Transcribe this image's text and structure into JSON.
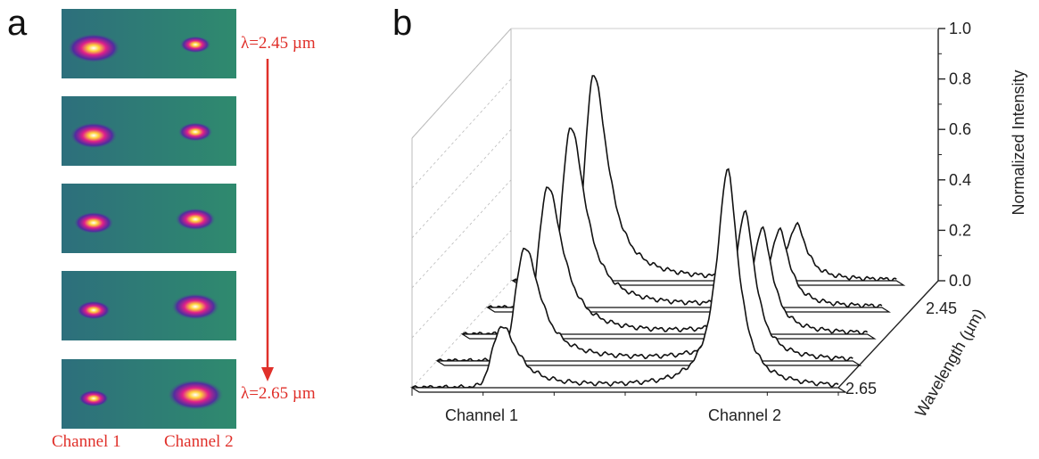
{
  "panel_a": {
    "label": "a",
    "top_wavelength": "λ=2.45 µm",
    "bottom_wavelength": "λ=2.65 µm",
    "channel1_caption": "Channel 1",
    "channel2_caption": "Channel 2",
    "images": [
      {
        "ch1": 0.95,
        "ch2": 0.35
      },
      {
        "ch1": 0.8,
        "ch2": 0.45
      },
      {
        "ch1": 0.6,
        "ch2": 0.6
      },
      {
        "ch1": 0.45,
        "ch2": 0.8
      },
      {
        "ch1": 0.35,
        "ch2": 1.0
      }
    ],
    "colors": {
      "background": "#2f8a6e",
      "accent": "#e0302a"
    }
  },
  "chart_data": {
    "type": "line",
    "panel_label": "b",
    "ylabel": "Normalized Intensity",
    "zlabel": "Wavelength (µm)",
    "z_tick_labels": [
      "2.45",
      "2.65"
    ],
    "category_labels": [
      "Channel 1",
      "Channel 2"
    ],
    "y_ticks": [
      "0.0",
      "0.2",
      "0.4",
      "0.6",
      "0.8",
      "1.0"
    ],
    "ylim": [
      0,
      1
    ],
    "series": [
      {
        "channel1_peak": 0.95,
        "channel2_peak": 0.25
      },
      {
        "channel1_peak": 0.83,
        "channel2_peak": 0.35
      },
      {
        "channel1_peak": 0.68,
        "channel2_peak": 0.48
      },
      {
        "channel1_peak": 0.52,
        "channel2_peak": 0.68
      },
      {
        "channel1_peak": 0.28,
        "channel2_peak": 1.0
      }
    ]
  }
}
